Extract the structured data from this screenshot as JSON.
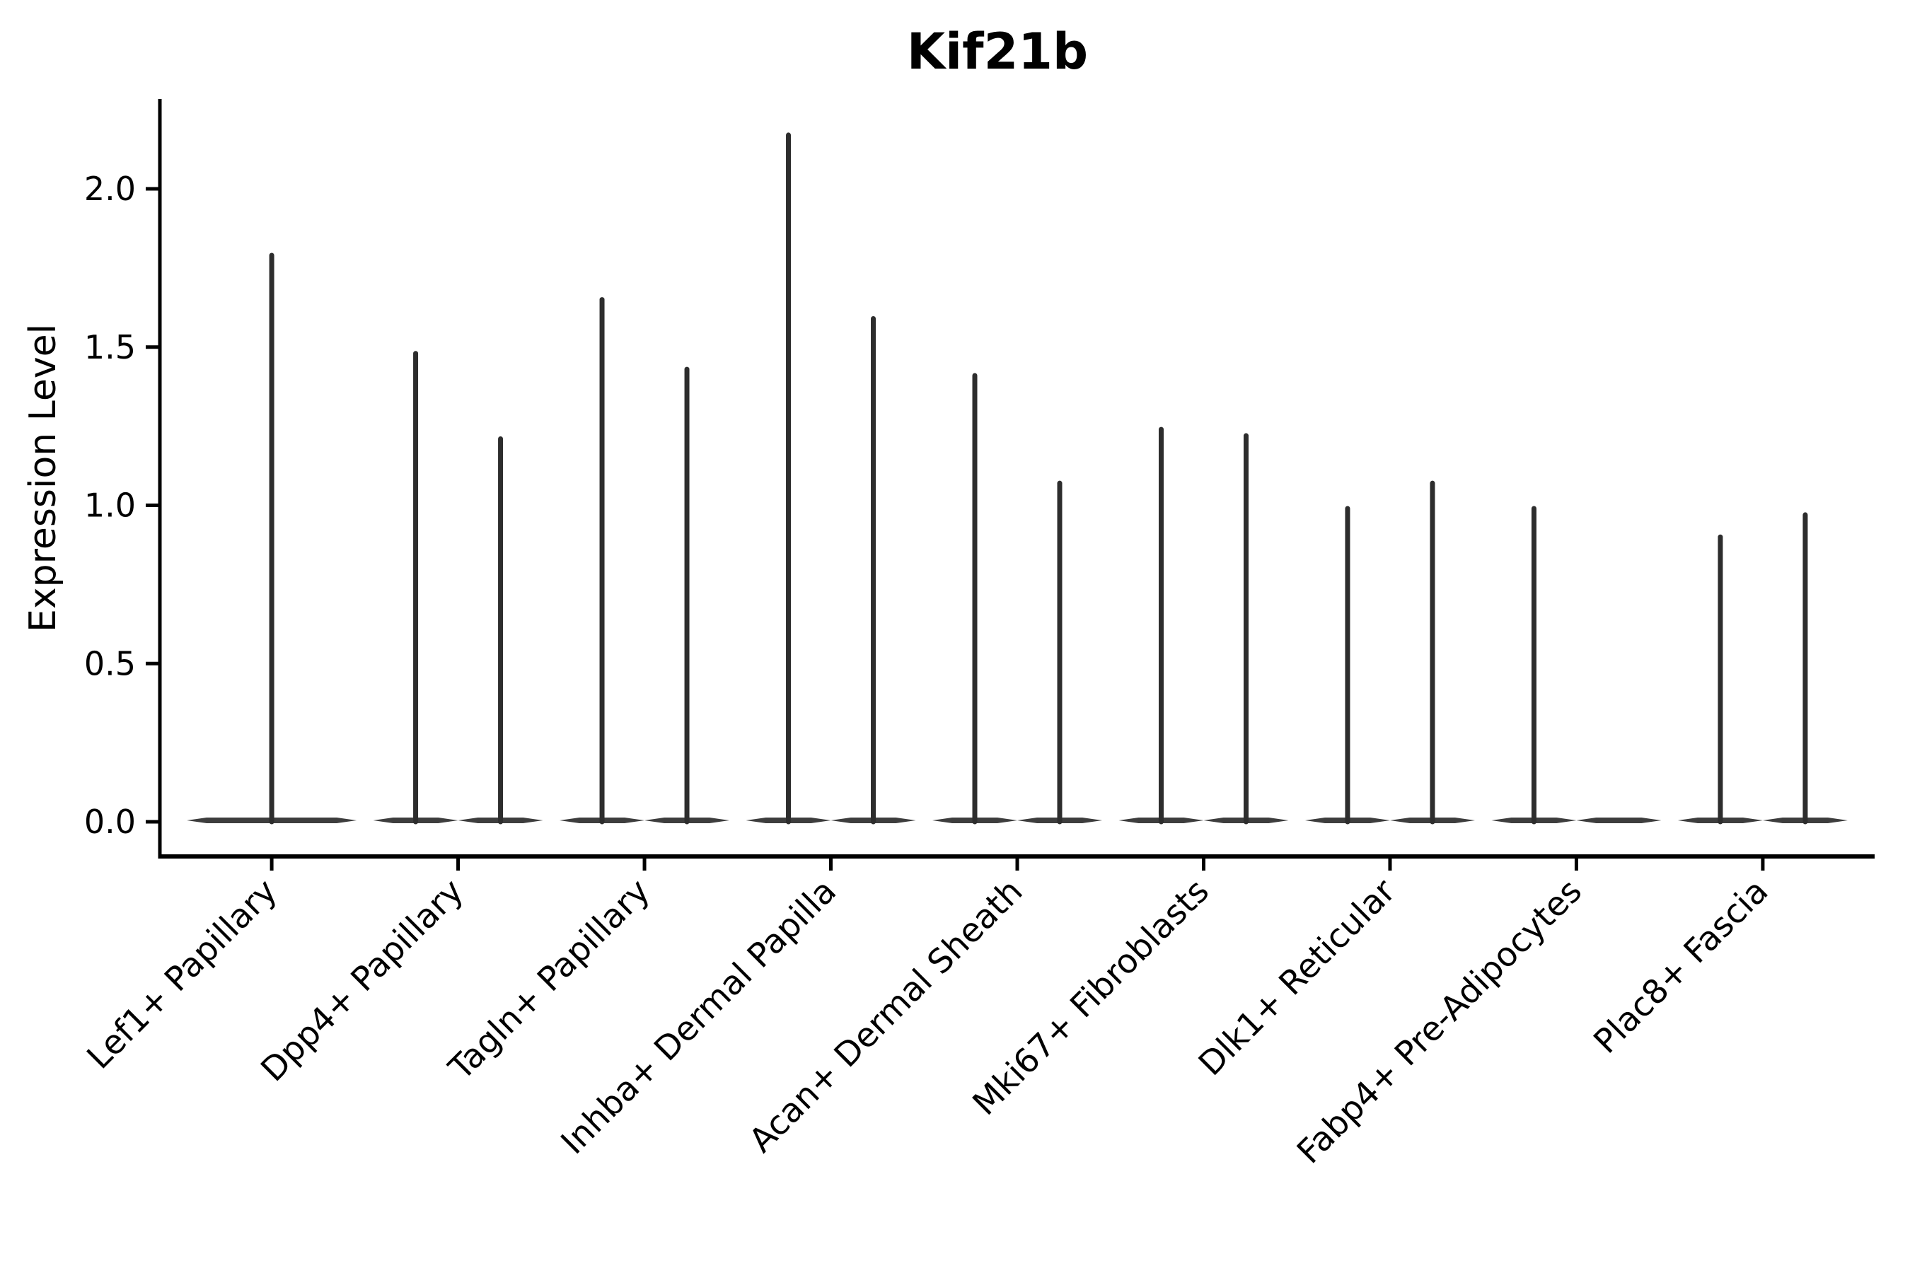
{
  "chart_data": {
    "type": "violin",
    "title": "Kif21b",
    "ylabel": "Expression Level",
    "xlabel": "",
    "yticks": [
      0.0,
      0.5,
      1.0,
      1.5,
      2.0
    ],
    "ytick_labels": [
      "0.0",
      "0.5",
      "1.0",
      "1.5",
      "2.0"
    ],
    "ylim": [
      -0.11,
      2.28
    ],
    "grid": "off",
    "legend_position": "none",
    "categories": [
      "Lef1+ Papillary",
      "Dpp4+ Papillary",
      "Tagln+ Papillary",
      "Inhba+ Dermal Papilla",
      "Acan+ Dermal Sheath",
      "Mki67+ Fibroblasts",
      "Dlk1+ Reticular",
      "Fabp4+ Pre-Adipocytes",
      "Plac8+ Fascia"
    ],
    "violins": [
      {
        "category": "Lef1+ Papillary",
        "layout": "single",
        "max_values": [
          1.79
        ]
      },
      {
        "category": "Dpp4+ Papillary",
        "layout": "pair",
        "max_values": [
          1.48,
          1.21
        ]
      },
      {
        "category": "Tagln+ Papillary",
        "layout": "pair",
        "max_values": [
          1.65,
          1.43
        ]
      },
      {
        "category": "Inhba+ Dermal Papilla",
        "layout": "pair",
        "max_values": [
          2.17,
          1.59
        ]
      },
      {
        "category": "Acan+ Dermal Sheath",
        "layout": "pair",
        "max_values": [
          1.41,
          1.07
        ]
      },
      {
        "category": "Mki67+ Fibroblasts",
        "layout": "pair",
        "max_values": [
          1.24,
          1.22
        ]
      },
      {
        "category": "Dlk1+ Reticular",
        "layout": "pair",
        "max_values": [
          0.99,
          1.07
        ]
      },
      {
        "category": "Fabp4+ Pre-Adipocytes",
        "layout": "pair",
        "max_values": [
          0.99,
          0
        ]
      },
      {
        "category": "Plac8+ Fascia",
        "layout": "pair",
        "max_values": [
          0.9,
          0.97
        ]
      }
    ],
    "colors": {
      "violin": "#2d2d2d",
      "axis": "#000000",
      "background": "#ffffff"
    }
  }
}
